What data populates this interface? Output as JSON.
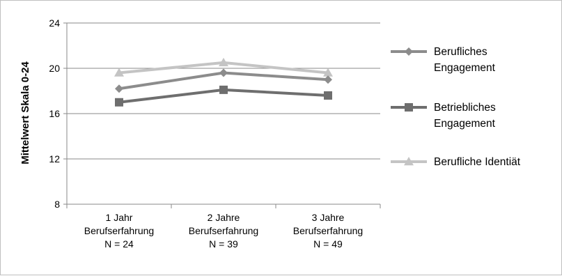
{
  "chart_data": {
    "type": "line",
    "title": "",
    "ylabel": "Mittelwert  Skala 0-24",
    "xlabel": "",
    "ylim": [
      8,
      24
    ],
    "yticks": [
      8,
      12,
      16,
      20,
      24
    ],
    "grid": true,
    "legend_position": "right",
    "categories": [
      [
        "1 Jahr",
        "Berufserfahrung",
        "N = 24"
      ],
      [
        "2 Jahre",
        "Berufserfahrung",
        "N = 39"
      ],
      [
        "3 Jahre",
        "Berufserfahrung",
        "N = 49"
      ]
    ],
    "series": [
      {
        "name": [
          "Berufliches",
          "Engagement"
        ],
        "marker": "diamond",
        "color": "#8c8c8c",
        "values": [
          18.2,
          19.6,
          19.0
        ]
      },
      {
        "name": [
          "Betriebliches",
          "Engagement"
        ],
        "marker": "square",
        "color": "#6e6e6e",
        "values": [
          17.0,
          18.1,
          17.6
        ]
      },
      {
        "name": [
          "Berufliche Identiät"
        ],
        "marker": "triangle",
        "color": "#c4c4c4",
        "values": [
          19.6,
          20.5,
          19.6
        ]
      }
    ]
  }
}
